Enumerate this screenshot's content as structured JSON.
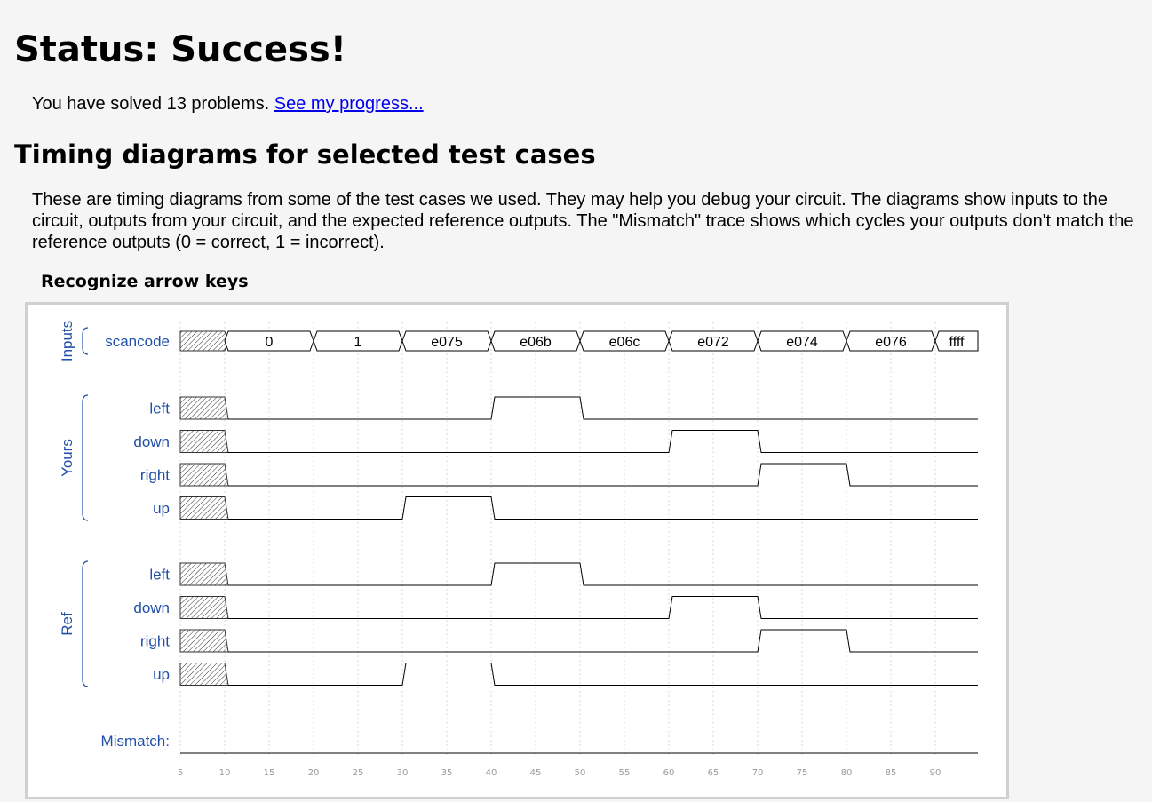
{
  "status": {
    "title": "Status: Success!"
  },
  "progress": {
    "text": "You have solved 13 problems.",
    "link": "See my progress..."
  },
  "section": {
    "title": "Timing diagrams for selected test cases",
    "intro": "These are timing diagrams from some of the test cases we used. They may help you debug your circuit. The diagrams show inputs to the circuit, outputs from your circuit, and the expected reference outputs. The \"Mismatch\" trace shows which cycles your outputs don't match the reference outputs (0 = correct, 1 = incorrect)."
  },
  "diagram": {
    "title": "Recognize arrow keys",
    "groups": {
      "inputs": "Inputs",
      "yours": "Yours",
      "ref": "Ref"
    },
    "mismatch_label": "Mismatch:",
    "ticks": [
      5,
      10,
      15,
      20,
      25,
      30,
      35,
      40,
      45,
      50,
      55,
      60,
      65,
      70,
      75,
      80,
      85,
      90
    ],
    "time_start": 5,
    "time_end": 95,
    "unknown_until": 10,
    "bus": {
      "name": "scancode",
      "segments": [
        {
          "from": 10,
          "to": 20,
          "value": "0"
        },
        {
          "from": 20,
          "to": 30,
          "value": "1"
        },
        {
          "from": 30,
          "to": 40,
          "value": "e075"
        },
        {
          "from": 40,
          "to": 50,
          "value": "e06b"
        },
        {
          "from": 50,
          "to": 60,
          "value": "e06c"
        },
        {
          "from": 60,
          "to": 70,
          "value": "e072"
        },
        {
          "from": 70,
          "to": 80,
          "value": "e074"
        },
        {
          "from": 80,
          "to": 90,
          "value": "e076"
        },
        {
          "from": 90,
          "to": 95,
          "value": "ffff"
        }
      ]
    },
    "yours": [
      {
        "name": "left",
        "high": [
          [
            40,
            50
          ]
        ]
      },
      {
        "name": "down",
        "high": [
          [
            60,
            70
          ]
        ]
      },
      {
        "name": "right",
        "high": [
          [
            70,
            80
          ]
        ]
      },
      {
        "name": "up",
        "high": [
          [
            30,
            40
          ]
        ]
      }
    ],
    "ref": [
      {
        "name": "left",
        "high": [
          [
            40,
            50
          ]
        ]
      },
      {
        "name": "down",
        "high": [
          [
            60,
            70
          ]
        ]
      },
      {
        "name": "right",
        "high": [
          [
            70,
            80
          ]
        ]
      },
      {
        "name": "up",
        "high": [
          [
            30,
            40
          ]
        ]
      }
    ],
    "mismatch": []
  }
}
